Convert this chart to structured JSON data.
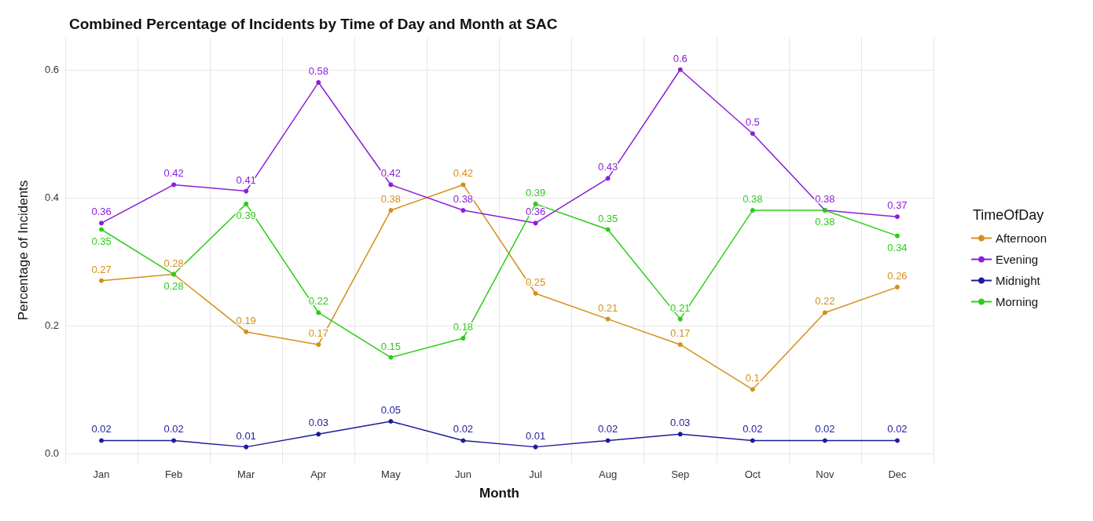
{
  "chart_data": {
    "type": "line",
    "title": "Combined Percentage of Incidents by Time of Day and Month at SAC",
    "xlabel": "Month",
    "ylabel": "Percentage of Incidents",
    "legend_title": "TimeOfDay",
    "categories": [
      "Jan",
      "Feb",
      "Mar",
      "Apr",
      "May",
      "Jun",
      "Jul",
      "Aug",
      "Sep",
      "Oct",
      "Nov",
      "Dec"
    ],
    "series": [
      {
        "name": "Afternoon",
        "color": "#d4901a",
        "values": [
          0.27,
          0.28,
          0.19,
          0.17,
          0.38,
          0.42,
          0.25,
          0.21,
          0.17,
          0.1,
          0.22,
          0.26
        ]
      },
      {
        "name": "Evening",
        "color": "#8a1fd6",
        "values": [
          0.36,
          0.42,
          0.41,
          0.58,
          0.42,
          0.38,
          0.36,
          0.43,
          0.6,
          0.5,
          0.38,
          0.37
        ]
      },
      {
        "name": "Midnight",
        "color": "#1c1c9c",
        "values": [
          0.02,
          0.02,
          0.01,
          0.03,
          0.05,
          0.02,
          0.01,
          0.02,
          0.03,
          0.02,
          0.02,
          0.02
        ]
      },
      {
        "name": "Morning",
        "color": "#2ecc1a",
        "values": [
          0.35,
          0.28,
          0.39,
          0.22,
          0.15,
          0.18,
          0.39,
          0.35,
          0.21,
          0.38,
          0.38,
          0.34
        ]
      }
    ],
    "ylim": [
      -0.015,
      0.65
    ],
    "yticks": [
      {
        "value": 0,
        "label": "0.0"
      },
      0.2,
      0.4,
      0.6
    ],
    "grid": true,
    "legend": "right",
    "marker": "circle",
    "line_style": "solid",
    "data_labels": true
  }
}
